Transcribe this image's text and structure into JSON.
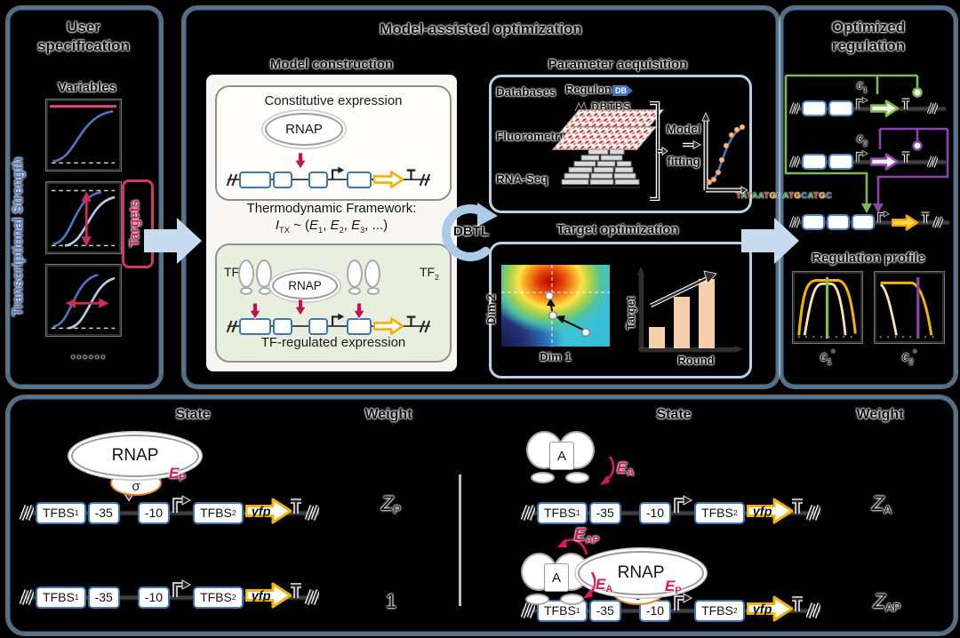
{
  "colors": {
    "panel_border": "#4a7aa5",
    "sub_panel_border": "#b7d2e8",
    "flow_arrow": "#c6dbee",
    "crimson": "#c0164d",
    "pink": "#dd1460",
    "yellow": "#f2b200",
    "green": "#7cb94e",
    "purple": "#8e44ad",
    "blue_curve": "#4d76bd",
    "light_blue_curve": "#b9cbe6",
    "peach_bar": "#f6cfae",
    "dna_box_blue": "#3b76b5"
  },
  "user": {
    "title1": "User",
    "title2": "specification",
    "variables": "Variables",
    "strength_axis": "Transcriptional Strength",
    "targets": "Targets",
    "more": "......"
  },
  "model": {
    "title": "Model-assisted optimization",
    "construction": {
      "heading": "Model construction",
      "constitutive_label": "Constitutive expression",
      "rnap": "RNAP",
      "thermo_title": "Thermodynamic Framework:",
      "itx_base": "I",
      "itx_sub": "TX",
      "thermo_open": " ~ (",
      "e_base": "E",
      "e1_sub": "1",
      "e2_sub": "2",
      "e3_sub": "3",
      "comma": ", ",
      "thermo_close": ", ...)",
      "tf_base": "TF",
      "tf1_sub": "1",
      "tf2_sub": "2",
      "tf_label": "TF-regulated expression"
    },
    "dbtl": "DBTL",
    "acquisition": {
      "heading": "Parameter acquisition",
      "databases": "Databases",
      "regulon": "Regulon",
      "regulon_db": "DB",
      "dbtbs": "DBTBS",
      "fluorometry": "Fluorometry",
      "rnaseq": "RNA-Seq",
      "sequence": "TATAATGCATGCATGC",
      "seq_colors": {
        "T": "#d63031",
        "A": "#2e9e44",
        "G": "#f2a51d",
        "C": "#2a5db0"
      },
      "fit1": "Model",
      "fit2": "fitting"
    },
    "optimization": {
      "heading": "Target optimization",
      "dim1": "Dim 1",
      "dim2": "Dim 2",
      "target": "Target",
      "round": "Round"
    }
  },
  "optimized": {
    "title1": "Optimized",
    "title2": "regulation",
    "c_base": "c",
    "c1_sub": "1",
    "c2_sub": "2",
    "star": "*",
    "profile": "Regulation profile"
  },
  "states": {
    "state": "State",
    "weight": "Weight",
    "rnap": "RNAP",
    "sigma": "σ",
    "activator": "A",
    "yfp": "yfp",
    "tfbs_base": "TFBS",
    "tfbs1_sub": "1",
    "tfbs2_sub": "2",
    "m35": "-35",
    "m10": "-10",
    "e_base": "E",
    "ep_sub": "P",
    "ea_sub": "A",
    "eap_sub": "AP",
    "z_base": "Z",
    "zp_sub": "P",
    "za_sub": "A",
    "zap_sub": "AP",
    "one": "1"
  }
}
